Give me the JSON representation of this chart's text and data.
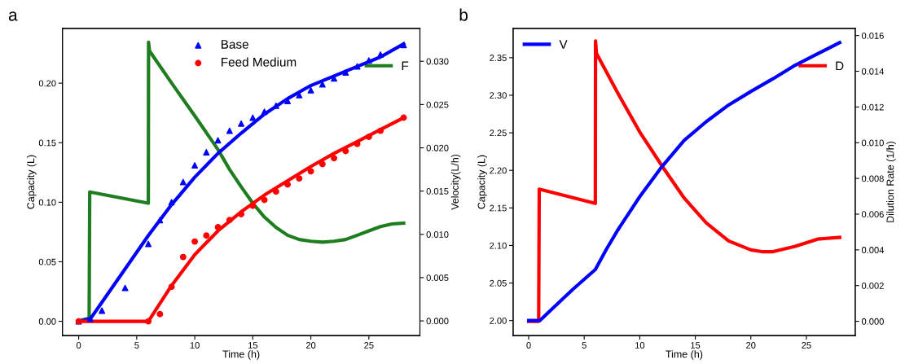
{
  "chart_data": [
    {
      "type": "line",
      "annotations": [
        "a"
      ],
      "xlabel": "Time (h)",
      "ylabel": "Capacity (L)",
      "y2label": "Velocity(L/h)",
      "xlim": [
        -1.4,
        29.4
      ],
      "xticks": [
        0,
        5,
        10,
        15,
        20,
        25
      ],
      "ylim": [
        -0.012,
        0.246
      ],
      "yticks": [
        {
          "value": 0,
          "label": "0.00"
        },
        {
          "value": 0.05,
          "label": "0.05"
        },
        {
          "value": 0.1,
          "label": "0.10"
        },
        {
          "value": 0.15,
          "label": "0.15"
        },
        {
          "value": 0.2,
          "label": "0.20"
        }
      ],
      "y2lim": [
        -0.0017,
        0.0338
      ],
      "y2ticks": [
        {
          "value": 0,
          "label": "0.000"
        },
        {
          "value": 0.005,
          "label": "0.005"
        },
        {
          "value": 0.01,
          "label": "0.010"
        },
        {
          "value": 0.015,
          "label": "0.015"
        },
        {
          "value": 0.02,
          "label": "0.020"
        },
        {
          "value": 0.025,
          "label": "0.025"
        },
        {
          "value": 0.03,
          "label": "0.030"
        }
      ],
      "legend": "top",
      "grid": false,
      "series": [
        {
          "color": "#0000ff",
          "x": [
            0,
            1,
            2,
            4,
            6,
            8,
            10,
            12,
            14,
            16,
            18,
            20,
            22,
            24,
            26,
            28
          ],
          "values": [
            0,
            0.002,
            0.016,
            0.044,
            0.072,
            0.098,
            0.121,
            0.141,
            0.158,
            0.174,
            0.187,
            0.198,
            0.206,
            0.214,
            0.222,
            0.233
          ]
        },
        {
          "color": "#ff0000",
          "x": [
            0,
            6,
            7,
            8,
            10,
            12,
            14,
            16,
            18,
            20,
            22,
            24,
            26,
            28
          ],
          "values": [
            0,
            0,
            0.015,
            0.03,
            0.056,
            0.076,
            0.092,
            0.106,
            0.118,
            0.13,
            0.141,
            0.151,
            0.161,
            0.171
          ]
        },
        {
          "type": "scatter",
          "name": "Base",
          "marker": "triangle",
          "color": "#0000ff",
          "x": [
            0,
            1,
            2,
            4,
            6,
            7,
            8,
            9,
            10,
            11,
            12,
            13,
            14,
            15,
            16,
            17,
            18,
            19,
            20,
            21,
            22,
            23,
            24,
            25,
            26,
            28
          ],
          "values": [
            0,
            0.002,
            0.009,
            0.028,
            0.065,
            0.085,
            0.1,
            0.117,
            0.131,
            0.142,
            0.152,
            0.16,
            0.166,
            0.171,
            0.176,
            0.181,
            0.185,
            0.19,
            0.194,
            0.199,
            0.204,
            0.209,
            0.214,
            0.219,
            0.224,
            0.232
          ]
        },
        {
          "type": "scatter",
          "name": "Feed Medium",
          "marker": "circle",
          "color": "#ff0000",
          "x": [
            0,
            6,
            7,
            8,
            9,
            10,
            11,
            12,
            13,
            14,
            15,
            16,
            17,
            18,
            19,
            20,
            21,
            22,
            23,
            24,
            25,
            26,
            28
          ],
          "values": [
            0,
            0,
            0.006,
            0.029,
            0.054,
            0.067,
            0.072,
            0.079,
            0.085,
            0.09,
            0.097,
            0.102,
            0.109,
            0.115,
            0.12,
            0.126,
            0.132,
            0.137,
            0.143,
            0.149,
            0.155,
            0.16,
            0.171
          ]
        },
        {
          "name": "F",
          "axis": "y2",
          "color": "#1e7d1e",
          "x": [
            0,
            0.9,
            0.95,
            6,
            6.02,
            6.1,
            8,
            10,
            12,
            13,
            14,
            15,
            16,
            17,
            18,
            19,
            20,
            21,
            22,
            23,
            24,
            25,
            26,
            27,
            28
          ],
          "values": [
            0,
            0.0003,
            0.0149,
            0.0136,
            0.0322,
            0.0312,
            0.0275,
            0.0237,
            0.0198,
            0.0175,
            0.0155,
            0.0136,
            0.012,
            0.0108,
            0.0099,
            0.0094,
            0.0092,
            0.0091,
            0.0092,
            0.0094,
            0.0099,
            0.0104,
            0.0109,
            0.0112,
            0.0113
          ]
        }
      ]
    },
    {
      "type": "line",
      "annotations": [
        "b"
      ],
      "xlabel": "Time (h)",
      "ylabel": "Capacity (L)",
      "y2label": "Dilution Rate (1/h)",
      "xlim": [
        -1.4,
        29.4
      ],
      "xticks": [
        0,
        5,
        10,
        15,
        20,
        25
      ],
      "ylim": [
        1.98,
        2.389
      ],
      "yticks": [
        {
          "value": 2.0,
          "label": "2.00"
        },
        {
          "value": 2.05,
          "label": "2.05"
        },
        {
          "value": 2.1,
          "label": "2.10"
        },
        {
          "value": 2.15,
          "label": "2.15"
        },
        {
          "value": 2.2,
          "label": "2.20"
        },
        {
          "value": 2.25,
          "label": "2.25"
        },
        {
          "value": 2.3,
          "label": "2.30"
        },
        {
          "value": 2.35,
          "label": "2.35"
        }
      ],
      "y2lim": [
        -0.0008,
        0.0164
      ],
      "y2ticks": [
        {
          "value": 0,
          "label": "0.000"
        },
        {
          "value": 0.002,
          "label": "0.002"
        },
        {
          "value": 0.004,
          "label": "0.004"
        },
        {
          "value": 0.006,
          "label": "0.006"
        },
        {
          "value": 0.008,
          "label": "0.008"
        },
        {
          "value": 0.01,
          "label": "0.010"
        },
        {
          "value": 0.012,
          "label": "0.012"
        },
        {
          "value": 0.014,
          "label": "0.014"
        },
        {
          "value": 0.016,
          "label": "0.016"
        }
      ],
      "legend": "top left",
      "grid": false,
      "series": [
        {
          "name": "V",
          "color": "#0000ff",
          "x": [
            0,
            1,
            2,
            4,
            6,
            7,
            8,
            10,
            12,
            14,
            16,
            18,
            20,
            22,
            24,
            26,
            28
          ],
          "values": [
            2.0,
            2.0,
            2.014,
            2.042,
            2.068,
            2.095,
            2.12,
            2.165,
            2.205,
            2.24,
            2.265,
            2.287,
            2.305,
            2.322,
            2.34,
            2.355,
            2.37
          ]
        },
        {
          "name": "D",
          "axis": "y2",
          "color": "#ff0000",
          "x": [
            0,
            0.9,
            0.95,
            6,
            6.02,
            6.1,
            8,
            10,
            12,
            14,
            16,
            18,
            20,
            21,
            22,
            24,
            26,
            28
          ],
          "values": [
            0,
            0,
            0.0074,
            0.0066,
            0.0157,
            0.015,
            0.0128,
            0.0106,
            0.0087,
            0.0069,
            0.0055,
            0.0045,
            0.004,
            0.0039,
            0.0039,
            0.0042,
            0.0046,
            0.0047
          ]
        }
      ]
    }
  ]
}
